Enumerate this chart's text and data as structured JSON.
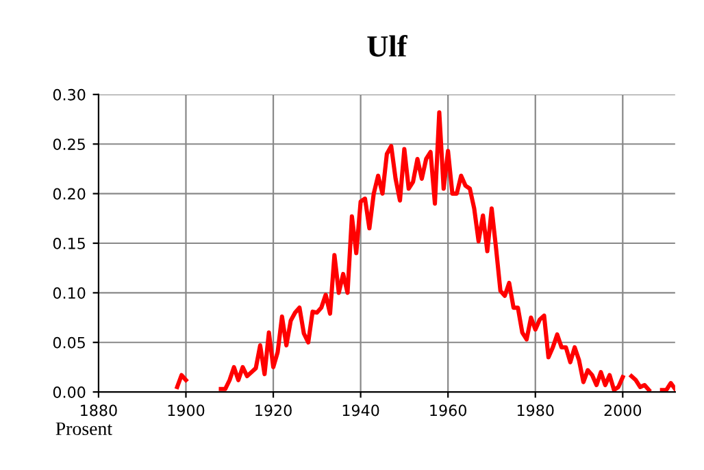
{
  "chart_data": {
    "type": "line",
    "title": "Ulf",
    "ylabel": "Prosent",
    "x": [
      1898,
      1899,
      1900,
      1901,
      1902,
      1903,
      1904,
      1905,
      1906,
      1907,
      1908,
      1909,
      1910,
      1911,
      1912,
      1913,
      1914,
      1915,
      1916,
      1917,
      1918,
      1919,
      1920,
      1921,
      1922,
      1923,
      1924,
      1925,
      1926,
      1927,
      1928,
      1929,
      1930,
      1931,
      1932,
      1933,
      1934,
      1935,
      1936,
      1937,
      1938,
      1939,
      1940,
      1941,
      1942,
      1943,
      1944,
      1945,
      1946,
      1947,
      1948,
      1949,
      1950,
      1951,
      1952,
      1953,
      1954,
      1955,
      1956,
      1957,
      1958,
      1959,
      1960,
      1961,
      1962,
      1963,
      1964,
      1965,
      1966,
      1967,
      1968,
      1969,
      1970,
      1971,
      1972,
      1973,
      1974,
      1975,
      1976,
      1977,
      1978,
      1979,
      1980,
      1981,
      1982,
      1983,
      1984,
      1985,
      1986,
      1987,
      1988,
      1989,
      1990,
      1991,
      1992,
      1993,
      1994,
      1995,
      1996,
      1997,
      1998,
      1999,
      2000,
      2001,
      2002,
      2003,
      2004,
      2005,
      2006,
      2007,
      2008,
      2009,
      2010,
      2011,
      2012
    ],
    "series": [
      {
        "color": "#ff0000",
        "values": [
          0.005,
          0.017,
          0.012,
          null,
          null,
          null,
          null,
          null,
          null,
          null,
          0.003,
          0.003,
          0.012,
          0.025,
          0.012,
          0.025,
          0.016,
          0.02,
          0.024,
          0.047,
          0.018,
          0.06,
          0.025,
          0.04,
          0.076,
          0.047,
          0.072,
          0.08,
          0.085,
          0.059,
          0.05,
          0.081,
          0.08,
          0.085,
          0.098,
          0.079,
          0.138,
          0.1,
          0.119,
          0.1,
          0.177,
          0.14,
          0.192,
          0.195,
          0.165,
          0.2,
          0.218,
          0.2,
          0.24,
          0.248,
          0.215,
          0.193,
          0.245,
          0.205,
          0.212,
          0.235,
          0.215,
          0.235,
          0.242,
          0.19,
          0.282,
          0.205,
          0.243,
          0.2,
          0.2,
          0.218,
          0.208,
          0.205,
          0.185,
          0.152,
          0.178,
          0.142,
          0.185,
          0.145,
          0.102,
          0.097,
          0.11,
          0.085,
          0.085,
          0.06,
          0.053,
          0.075,
          0.063,
          0.073,
          0.077,
          0.035,
          0.045,
          0.058,
          0.045,
          0.045,
          0.03,
          0.045,
          0.032,
          0.01,
          0.022,
          0.017,
          0.007,
          0.02,
          0.007,
          0.017,
          0.002,
          0.005,
          0.015,
          null,
          0.016,
          0.012,
          0.005,
          0.007,
          0.002,
          null,
          null,
          0.002,
          0.002,
          0.009,
          0.003
        ]
      }
    ],
    "xlim": [
      1880,
      2012
    ],
    "xticks": [
      1880,
      1900,
      1920,
      1940,
      1960,
      1980,
      2000
    ],
    "ylim": [
      0,
      0.3
    ],
    "yticks": [
      {
        "value": 0,
        "label": "0.00"
      },
      {
        "value": 0.05,
        "label": "0.05"
      },
      {
        "value": 0.1,
        "label": "0.10"
      },
      {
        "value": 0.15,
        "label": "0.15"
      },
      {
        "value": 0.2,
        "label": "0.20"
      },
      {
        "value": 0.25,
        "label": "0.25"
      },
      {
        "value": 0.3,
        "label": "0.30"
      }
    ],
    "grid": true,
    "line_style": "solid"
  }
}
